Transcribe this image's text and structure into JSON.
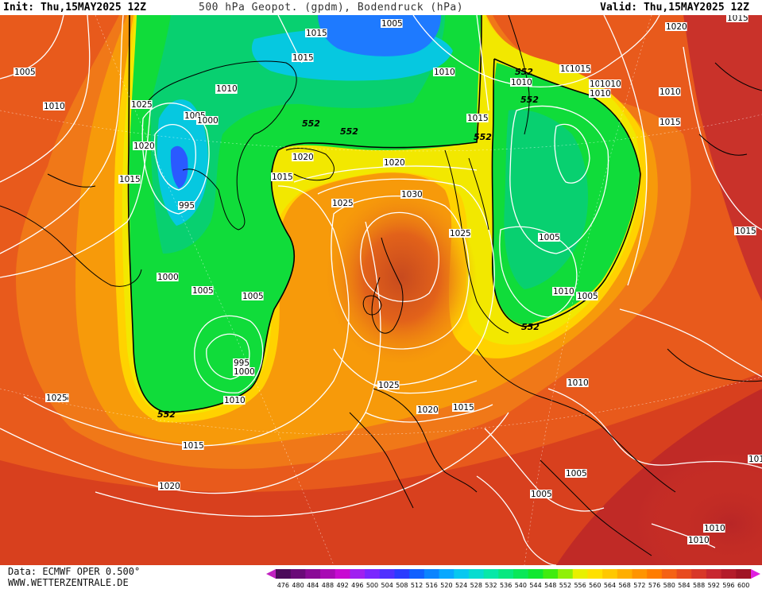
{
  "header": {
    "init": "Init: Thu,15MAY2025 12Z",
    "title": "500 hPa Geopot. (gpdm), Bodendruck (hPa)",
    "valid": "Valid: Thu,15MAY2025 12Z"
  },
  "footer": {
    "source": "Data: ECMWF OPER 0.500°",
    "site": "WWW.WETTERZENTRALE.DE"
  },
  "colorbar": {
    "ticks": [
      "476",
      "480",
      "484",
      "488",
      "492",
      "496",
      "500",
      "504",
      "508",
      "512",
      "516",
      "520",
      "524",
      "528",
      "532",
      "536",
      "540",
      "544",
      "548",
      "552",
      "556",
      "560",
      "564",
      "568",
      "572",
      "576",
      "580",
      "584",
      "588",
      "592",
      "596",
      "600"
    ],
    "colors": [
      "#4b0a5a",
      "#6a0a78",
      "#8a0a96",
      "#a80ab4",
      "#c80ad2",
      "#a020f0",
      "#7a26ff",
      "#5030ff",
      "#2a3cff",
      "#1060ff",
      "#0a84ff",
      "#08a8ff",
      "#06c8f0",
      "#06dcd0",
      "#06e8a8",
      "#08e880",
      "#0ae858",
      "#10e830",
      "#40ec10",
      "#90f008",
      "#e8f000",
      "#ffe000",
      "#ffc800",
      "#ffae00",
      "#ff9400",
      "#ff7c00",
      "#f56214",
      "#e84a1e",
      "#d83828",
      "#c82830",
      "#b41c2a",
      "#a01424"
    ],
    "end_left_color": "#c020c0",
    "end_right_color": "#e020e0"
  },
  "map": {
    "contour_552_label": "552",
    "isobar_labels": [
      {
        "text": "1005"
      },
      {
        "text": "1015"
      },
      {
        "text": "1015"
      },
      {
        "text": "1005"
      },
      {
        "text": "1010"
      },
      {
        "text": "1010"
      },
      {
        "text": "1025"
      },
      {
        "text": "1010"
      },
      {
        "text": "1005"
      },
      {
        "text": "1000"
      },
      {
        "text": "1020"
      },
      {
        "text": "1015"
      },
      {
        "text": "995"
      },
      {
        "text": "1010"
      },
      {
        "text": "1005"
      },
      {
        "text": "1000"
      },
      {
        "text": "1005"
      },
      {
        "text": "995"
      },
      {
        "text": "1000"
      },
      {
        "text": "1010"
      },
      {
        "text": "1025"
      },
      {
        "text": "1015"
      },
      {
        "text": "1020"
      },
      {
        "text": "1015"
      },
      {
        "text": "1020"
      },
      {
        "text": "1015"
      },
      {
        "text": "1020"
      },
      {
        "text": "1025"
      },
      {
        "text": "1030"
      },
      {
        "text": "1025"
      },
      {
        "text": "1025"
      },
      {
        "text": "1020"
      },
      {
        "text": "1015"
      },
      {
        "text": "1005"
      },
      {
        "text": "1010"
      },
      {
        "text": "1005"
      },
      {
        "text": "1010"
      },
      {
        "text": "1010"
      },
      {
        "text": "1005"
      },
      {
        "text": "1015"
      },
      {
        "text": "1015"
      },
      {
        "text": "1010"
      },
      {
        "text": "1015"
      },
      {
        "text": "1015"
      },
      {
        "text": "1015"
      },
      {
        "text": "1015"
      },
      {
        "text": "1005"
      },
      {
        "text": "1005"
      },
      {
        "text": "1010"
      },
      {
        "text": "1010"
      },
      {
        "text": "1025"
      },
      {
        "text": "1020"
      },
      {
        "text": "1010"
      },
      {
        "text": "1010"
      },
      {
        "text": "101"
      }
    ]
  }
}
